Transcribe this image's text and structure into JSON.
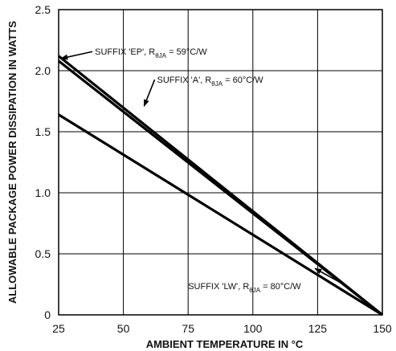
{
  "chart_data": {
    "type": "line",
    "xlabel": "AMBIENT TEMPERATURE IN °C",
    "ylabel": "ALLOWABLE PACKAGE POWER DISSIPATION IN WATTS",
    "xlim": [
      25,
      150
    ],
    "ylim": [
      0,
      2.5
    ],
    "x_ticks": [
      "25",
      "50",
      "75",
      "100",
      "125",
      "150"
    ],
    "y_ticks": [
      "0",
      "0.5",
      "1.0",
      "1.5",
      "2.0",
      "2.5"
    ],
    "grid": true,
    "series": [
      {
        "x": [
          25,
          150
        ],
        "values": [
          2.12,
          0
        ]
      },
      {
        "x": [
          25,
          150
        ],
        "values": [
          2.08,
          0
        ]
      },
      {
        "x": [
          25,
          150
        ],
        "values": [
          1.64,
          0
        ]
      }
    ],
    "annotations": [
      {
        "prefix": "SUFFIX 'EP', R",
        "subscript": "θJA",
        "suffix": " = 59°C/W",
        "series": 0,
        "text_at": [
          39,
          2.13
        ],
        "arrow_to": [
          26,
          2.1
        ]
      },
      {
        "prefix": "SUFFIX 'A', R",
        "subscript": "θJA",
        "suffix": " = 60°C/W",
        "series": 1,
        "text_at": [
          63,
          1.9
        ],
        "arrow_to": [
          58,
          1.71
        ]
      },
      {
        "prefix": "SUFFIX 'LW', R",
        "subscript": "θJA",
        "suffix": " = 80°C/W",
        "series": 2,
        "text_at": [
          75,
          0.21
        ],
        "arrow_to": [
          124,
          0.38
        ]
      }
    ]
  }
}
